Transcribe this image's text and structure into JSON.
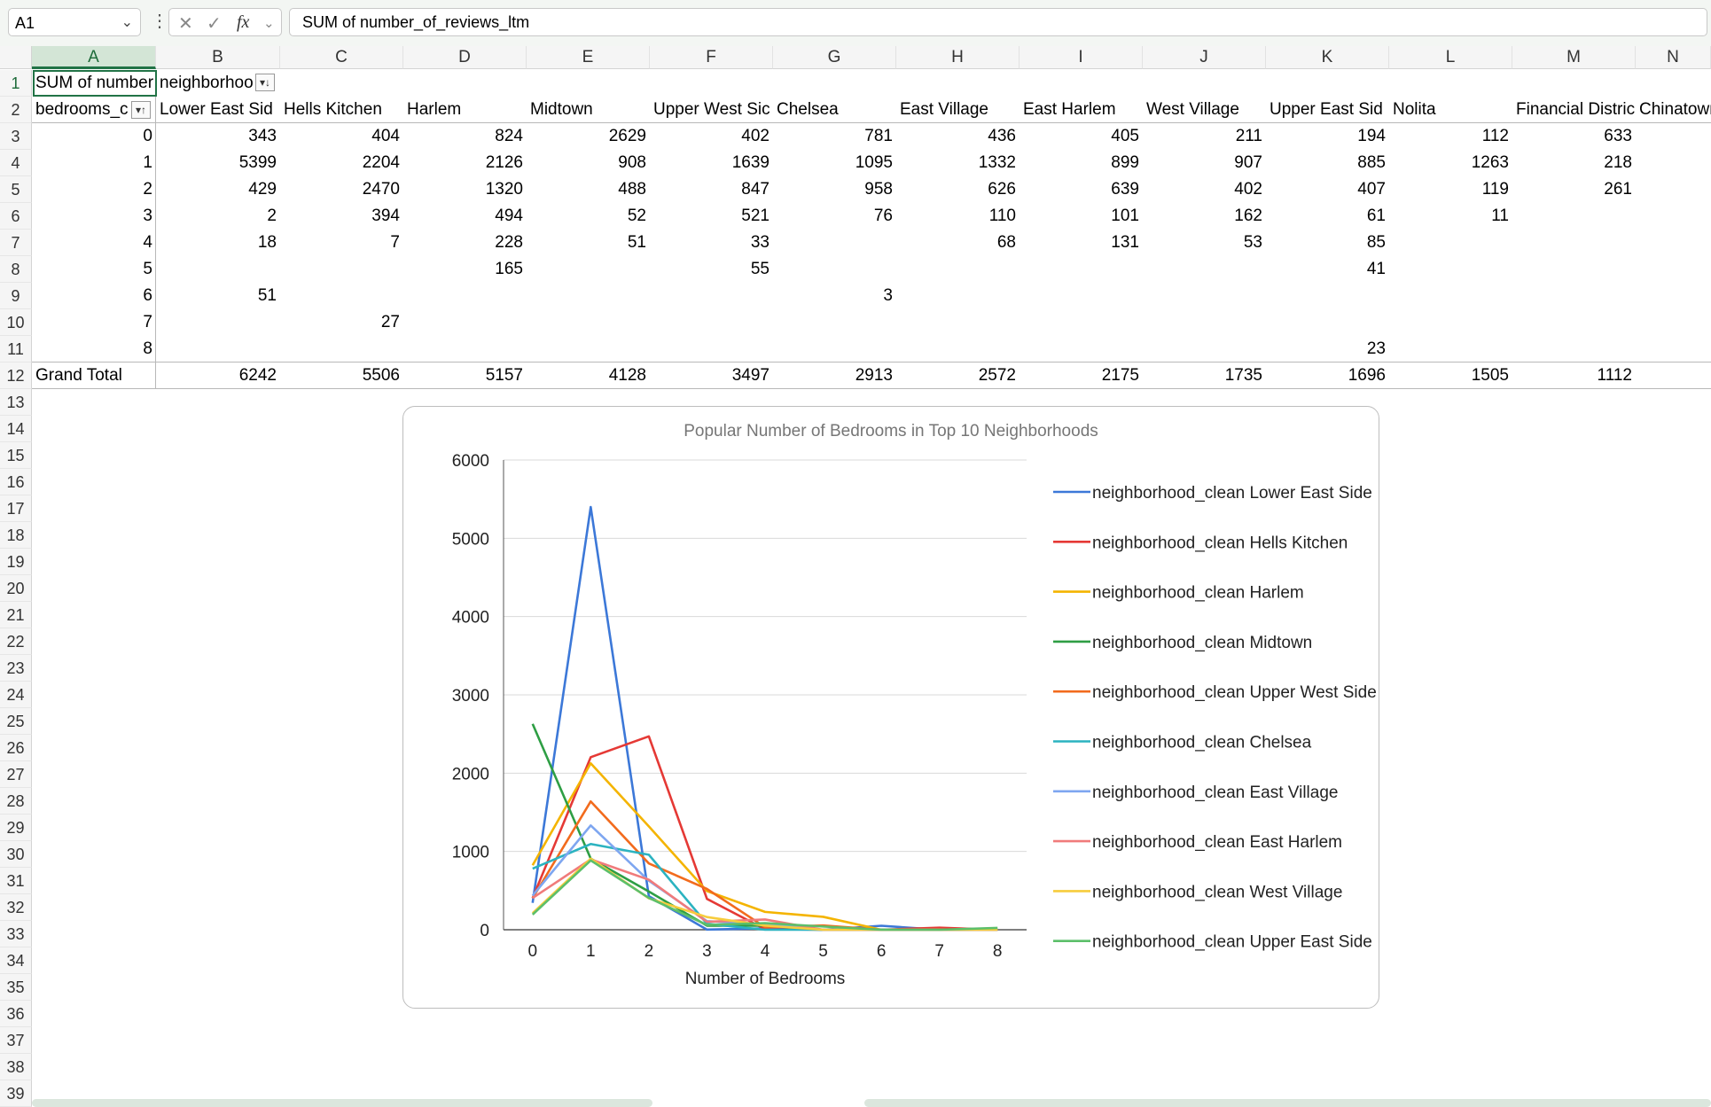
{
  "namebox": {
    "value": "A1"
  },
  "formula_bar": {
    "fx_label": "fx",
    "cancel": "✕",
    "enter": "✓",
    "value": "SUM of number_of_reviews_ltm"
  },
  "columns": [
    "A",
    "B",
    "C",
    "D",
    "E",
    "F",
    "G",
    "H",
    "I",
    "J",
    "K",
    "L",
    "M",
    "N"
  ],
  "rows": [
    "1",
    "2",
    "3",
    "4",
    "5",
    "6",
    "7",
    "8",
    "9",
    "10",
    "11",
    "12",
    "13",
    "14",
    "15",
    "16",
    "17",
    "18",
    "19",
    "20",
    "21",
    "22",
    "23",
    "24",
    "25",
    "26",
    "27",
    "28",
    "29",
    "30",
    "31",
    "32",
    "33",
    "34",
    "35",
    "36",
    "37",
    "38",
    "39"
  ],
  "pivot": {
    "a1_label": "SUM of number",
    "b1_label": "neighborhoo",
    "row_field": "bedrooms_c",
    "neighborhoods": [
      "Lower East Sid",
      "Hells Kitchen",
      "Harlem",
      "Midtown",
      "Upper West Sic",
      "Chelsea",
      "East Village",
      "East Harlem",
      "West Village",
      "Upper East Sid",
      "Nolita",
      "Financial Distric",
      "Chinatown"
    ],
    "bedroom_rows": [
      {
        "label": "0",
        "values": [
          "343",
          "404",
          "824",
          "2629",
          "402",
          "781",
          "436",
          "405",
          "211",
          "194",
          "112",
          "633",
          ""
        ]
      },
      {
        "label": "1",
        "values": [
          "5399",
          "2204",
          "2126",
          "908",
          "1639",
          "1095",
          "1332",
          "899",
          "907",
          "885",
          "1263",
          "218",
          ""
        ]
      },
      {
        "label": "2",
        "values": [
          "429",
          "2470",
          "1320",
          "488",
          "847",
          "958",
          "626",
          "639",
          "402",
          "407",
          "119",
          "261",
          ""
        ]
      },
      {
        "label": "3",
        "values": [
          "2",
          "394",
          "494",
          "52",
          "521",
          "76",
          "110",
          "101",
          "162",
          "61",
          "11",
          "",
          ""
        ]
      },
      {
        "label": "4",
        "values": [
          "18",
          "7",
          "228",
          "51",
          "33",
          "",
          "68",
          "131",
          "53",
          "85",
          "",
          "",
          ""
        ]
      },
      {
        "label": "5",
        "values": [
          "",
          "",
          "165",
          "",
          "55",
          "",
          "",
          "",
          "",
          "41",
          "",
          "",
          ""
        ]
      },
      {
        "label": "6",
        "values": [
          "51",
          "",
          "",
          "",
          "",
          "3",
          "",
          "",
          "",
          "",
          "",
          "",
          ""
        ]
      },
      {
        "label": "7",
        "values": [
          "",
          "27",
          "",
          "",
          "",
          "",
          "",
          "",
          "",
          "",
          "",
          "",
          ""
        ]
      },
      {
        "label": "8",
        "values": [
          "",
          "",
          "",
          "",
          "",
          "",
          "",
          "",
          "",
          "23",
          "",
          "",
          ""
        ]
      }
    ],
    "grand_total_label": "Grand Total",
    "grand_totals": [
      "6242",
      "5506",
      "5157",
      "4128",
      "3497",
      "2913",
      "2572",
      "2175",
      "1735",
      "1696",
      "1505",
      "1112",
      ""
    ]
  },
  "chart_data": {
    "type": "line",
    "title": "Popular Number of Bedrooms in Top 10 Neighborhoods",
    "xlabel": "Number of Bedrooms",
    "ylabel": "",
    "x": [
      0,
      1,
      2,
      3,
      4,
      5,
      6,
      7,
      8
    ],
    "ylim": [
      0,
      6000
    ],
    "yticks": [
      0,
      1000,
      2000,
      3000,
      4000,
      5000,
      6000
    ],
    "grid": true,
    "legend_position": "right",
    "series": [
      {
        "name": "neighborhood_clean Lower East Side",
        "color": "#3c78d8",
        "values": [
          343,
          5399,
          429,
          2,
          18,
          0,
          51,
          0,
          0
        ]
      },
      {
        "name": "neighborhood_clean Hells Kitchen",
        "color": "#e53935",
        "values": [
          404,
          2204,
          2470,
          394,
          7,
          0,
          0,
          27,
          0
        ]
      },
      {
        "name": "neighborhood_clean Harlem",
        "color": "#f4b400",
        "values": [
          824,
          2126,
          1320,
          494,
          228,
          165,
          0,
          0,
          0
        ]
      },
      {
        "name": "neighborhood_clean Midtown",
        "color": "#2e9e44",
        "values": [
          2629,
          908,
          488,
          52,
          51,
          0,
          0,
          0,
          0
        ]
      },
      {
        "name": "neighborhood_clean Upper West Side",
        "color": "#f26b1d",
        "values": [
          402,
          1639,
          847,
          521,
          33,
          55,
          0,
          0,
          0
        ]
      },
      {
        "name": "neighborhood_clean Chelsea",
        "color": "#2bb3c0",
        "values": [
          781,
          1095,
          958,
          76,
          0,
          0,
          3,
          0,
          0
        ]
      },
      {
        "name": "neighborhood_clean East Village",
        "color": "#7ea6f0",
        "values": [
          436,
          1332,
          626,
          110,
          68,
          0,
          0,
          0,
          0
        ]
      },
      {
        "name": "neighborhood_clean East Harlem",
        "color": "#f07b7b",
        "values": [
          405,
          899,
          639,
          101,
          131,
          0,
          0,
          0,
          0
        ]
      },
      {
        "name": "neighborhood_clean West Village",
        "color": "#f7cc3c",
        "values": [
          211,
          907,
          402,
          162,
          53,
          0,
          0,
          0,
          0
        ]
      },
      {
        "name": "neighborhood_clean Upper East Side",
        "color": "#5cbf6a",
        "values": [
          194,
          885,
          407,
          61,
          85,
          41,
          0,
          0,
          23
        ]
      }
    ]
  }
}
